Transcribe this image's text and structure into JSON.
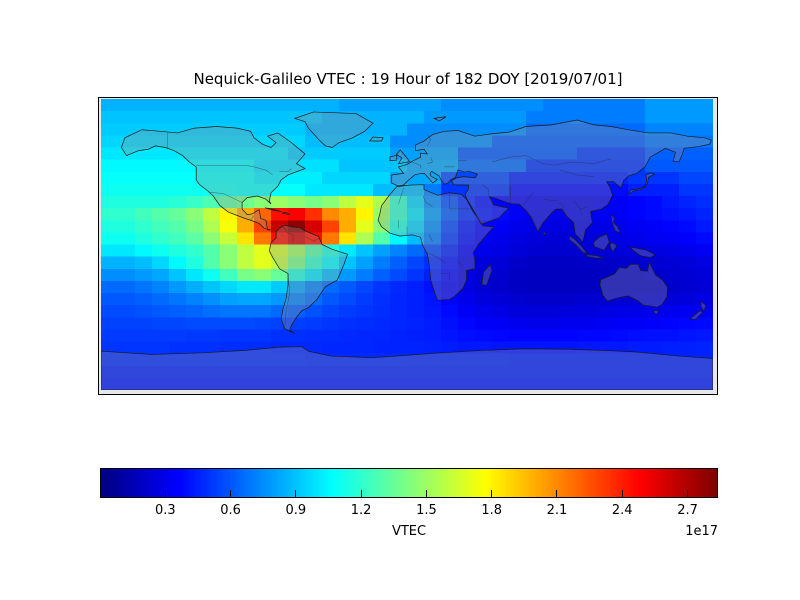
{
  "title": "Nequick-Galileo VTEC : 19 Hour of 182 DOY [2019/07/01]",
  "colorbar": {
    "label": "VTEC",
    "offset_text": "1e17",
    "ticks": [
      0.3,
      0.6,
      0.9,
      1.2,
      1.5,
      1.8,
      2.1,
      2.4,
      2.7
    ],
    "vmin": 0,
    "vmax": 2.84,
    "colormap": "jet"
  },
  "chart_data": {
    "type": "heatmap",
    "title": "Nequick-Galileo VTEC : 19 Hour of 182 DOY [2019/07/01]",
    "colorbar_label": "VTEC",
    "scale_factor": "1e17",
    "colormap": "jet",
    "vmin": 0,
    "vmax": 2.84,
    "lon_range": [
      -180,
      180
    ],
    "lat_range": [
      90,
      -90
    ],
    "grid_cols": 36,
    "grid_rows": 24,
    "values_units": "1e17",
    "values": [
      [
        0.85,
        0.85,
        0.85,
        0.85,
        0.85,
        0.85,
        0.85,
        0.85,
        0.85,
        0.85,
        0.85,
        0.85,
        0.85,
        0.85,
        0.8,
        0.8,
        0.8,
        0.8,
        0.8,
        0.8,
        0.75,
        0.75,
        0.75,
        0.75,
        0.75,
        0.75,
        0.7,
        0.7,
        0.7,
        0.7,
        0.7,
        0.7,
        0.78,
        0.78,
        0.78,
        0.78
      ],
      [
        0.9,
        0.9,
        0.9,
        0.9,
        0.9,
        0.9,
        0.9,
        0.9,
        0.9,
        0.9,
        0.9,
        0.9,
        0.9,
        0.85,
        0.85,
        0.85,
        0.85,
        0.85,
        0.85,
        0.78,
        0.78,
        0.78,
        0.78,
        0.78,
        0.78,
        0.7,
        0.7,
        0.7,
        0.7,
        0.7,
        0.7,
        0.7,
        0.78,
        0.78,
        0.78,
        0.78
      ],
      [
        0.92,
        0.92,
        0.92,
        0.92,
        0.92,
        0.92,
        0.92,
        0.92,
        0.92,
        0.92,
        0.92,
        0.92,
        0.85,
        0.85,
        0.85,
        0.85,
        0.85,
        0.85,
        0.75,
        0.75,
        0.75,
        0.75,
        0.75,
        0.75,
        0.75,
        0.65,
        0.65,
        0.65,
        0.65,
        0.65,
        0.65,
        0.65,
        0.72,
        0.72,
        0.72,
        0.72
      ],
      [
        0.95,
        0.95,
        0.95,
        0.95,
        0.95,
        0.95,
        0.95,
        0.95,
        0.95,
        0.95,
        0.95,
        0.95,
        0.88,
        0.88,
        0.88,
        0.88,
        0.88,
        0.75,
        0.75,
        0.75,
        0.75,
        0.75,
        0.75,
        0.62,
        0.62,
        0.62,
        0.62,
        0.62,
        0.62,
        0.62,
        0.62,
        0.62,
        0.68,
        0.68,
        0.68,
        0.68
      ],
      [
        1.0,
        1.0,
        1.0,
        1.0,
        1.0,
        1.0,
        1.0,
        1.0,
        1.0,
        1.0,
        1.0,
        0.92,
        0.92,
        0.92,
        0.92,
        0.92,
        0.92,
        0.8,
        0.8,
        0.8,
        0.8,
        0.6,
        0.6,
        0.6,
        0.6,
        0.6,
        0.6,
        0.6,
        0.52,
        0.52,
        0.52,
        0.52,
        0.62,
        0.62,
        0.62,
        0.62
      ],
      [
        1.05,
        1.05,
        1.05,
        1.05,
        1.05,
        1.05,
        1.05,
        1.05,
        1.05,
        0.98,
        0.98,
        0.98,
        0.98,
        0.98,
        0.9,
        0.9,
        0.9,
        0.9,
        0.82,
        0.82,
        0.82,
        0.65,
        0.65,
        0.65,
        0.65,
        0.5,
        0.5,
        0.5,
        0.5,
        0.5,
        0.5,
        0.5,
        0.6,
        0.6,
        0.6,
        0.6
      ],
      [
        1.08,
        1.08,
        1.08,
        1.08,
        1.08,
        1.08,
        1.08,
        1.08,
        1.08,
        1.02,
        1.02,
        1.02,
        1.02,
        0.95,
        0.95,
        0.95,
        0.95,
        0.82,
        0.82,
        0.82,
        0.55,
        0.55,
        0.55,
        0.55,
        0.45,
        0.45,
        0.45,
        0.45,
        0.45,
        0.45,
        0.45,
        0.5,
        0.5,
        0.5,
        0.55,
        0.55
      ],
      [
        1.1,
        1.1,
        1.1,
        1.1,
        1.1,
        1.1,
        1.1,
        1.1,
        1.08,
        1.08,
        1.08,
        1.08,
        1.0,
        1.0,
        1.0,
        1.0,
        0.88,
        0.88,
        0.88,
        0.7,
        0.5,
        0.5,
        0.5,
        0.5,
        0.38,
        0.38,
        0.38,
        0.38,
        0.38,
        0.38,
        0.38,
        0.44,
        0.44,
        0.44,
        0.5,
        0.5
      ],
      [
        1.15,
        1.15,
        1.15,
        1.15,
        1.18,
        1.22,
        1.28,
        1.32,
        1.38,
        1.45,
        1.5,
        1.45,
        1.4,
        1.45,
        1.6,
        1.7,
        1.55,
        1.2,
        0.95,
        0.75,
        0.58,
        0.47,
        0.4,
        0.36,
        0.33,
        0.32,
        0.3,
        0.3,
        0.3,
        0.32,
        0.33,
        0.36,
        0.38,
        0.42,
        0.45,
        0.48
      ],
      [
        1.2,
        1.2,
        1.25,
        1.3,
        1.35,
        1.45,
        1.6,
        1.8,
        2.0,
        2.2,
        2.45,
        2.5,
        2.35,
        2.1,
        2.0,
        1.8,
        1.5,
        1.2,
        1.0,
        0.8,
        0.62,
        0.48,
        0.42,
        0.38,
        0.33,
        0.3,
        0.3,
        0.3,
        0.3,
        0.32,
        0.33,
        0.36,
        0.38,
        0.4,
        0.42,
        0.45
      ],
      [
        1.15,
        1.15,
        1.2,
        1.25,
        1.3,
        1.4,
        1.55,
        1.75,
        2.0,
        2.3,
        2.65,
        2.8,
        2.6,
        2.3,
        2.0,
        1.7,
        1.45,
        1.15,
        0.95,
        0.75,
        0.55,
        0.42,
        0.36,
        0.33,
        0.3,
        0.28,
        0.27,
        0.27,
        0.28,
        0.28,
        0.3,
        0.32,
        0.34,
        0.36,
        0.38,
        0.42
      ],
      [
        1.1,
        1.1,
        1.15,
        1.2,
        1.25,
        1.32,
        1.45,
        1.62,
        1.85,
        2.15,
        2.45,
        2.6,
        2.45,
        2.15,
        1.85,
        1.55,
        1.3,
        1.05,
        0.88,
        0.7,
        0.52,
        0.4,
        0.33,
        0.3,
        0.27,
        0.25,
        0.24,
        0.24,
        0.25,
        0.26,
        0.28,
        0.3,
        0.32,
        0.33,
        0.35,
        0.38
      ],
      [
        1.0,
        1.0,
        1.05,
        1.1,
        1.15,
        1.2,
        1.3,
        1.45,
        1.6,
        1.7,
        1.65,
        1.5,
        1.3,
        1.15,
        1.0,
        0.9,
        0.8,
        0.72,
        0.65,
        0.55,
        0.45,
        0.35,
        0.3,
        0.28,
        0.25,
        0.23,
        0.22,
        0.22,
        0.23,
        0.24,
        0.25,
        0.26,
        0.27,
        0.28,
        0.3,
        0.32
      ],
      [
        0.85,
        0.85,
        0.88,
        0.95,
        1.05,
        1.15,
        1.3,
        1.45,
        1.6,
        1.7,
        1.6,
        1.4,
        1.2,
        1.05,
        0.9,
        0.8,
        0.7,
        0.62,
        0.55,
        0.48,
        0.4,
        0.3,
        0.26,
        0.24,
        0.21,
        0.19,
        0.19,
        0.19,
        0.2,
        0.2,
        0.21,
        0.22,
        0.23,
        0.24,
        0.25,
        0.27
      ],
      [
        0.75,
        0.75,
        0.78,
        0.82,
        0.9,
        1.0,
        1.1,
        1.25,
        1.4,
        1.45,
        1.35,
        1.15,
        1.0,
        0.88,
        0.78,
        0.7,
        0.62,
        0.56,
        0.5,
        0.44,
        0.37,
        0.28,
        0.24,
        0.22,
        0.19,
        0.18,
        0.18,
        0.18,
        0.18,
        0.19,
        0.2,
        0.2,
        0.21,
        0.22,
        0.23,
        0.25
      ],
      [
        0.65,
        0.65,
        0.68,
        0.72,
        0.78,
        0.84,
        0.9,
        0.96,
        1.0,
        1.0,
        0.92,
        0.82,
        0.72,
        0.65,
        0.6,
        0.55,
        0.5,
        0.47,
        0.44,
        0.4,
        0.34,
        0.27,
        0.23,
        0.21,
        0.19,
        0.18,
        0.18,
        0.18,
        0.18,
        0.19,
        0.19,
        0.2,
        0.2,
        0.21,
        0.22,
        0.24
      ],
      [
        0.6,
        0.6,
        0.62,
        0.65,
        0.68,
        0.72,
        0.76,
        0.8,
        0.82,
        0.82,
        0.78,
        0.72,
        0.66,
        0.6,
        0.56,
        0.52,
        0.49,
        0.46,
        0.44,
        0.41,
        0.36,
        0.3,
        0.26,
        0.24,
        0.22,
        0.21,
        0.21,
        0.21,
        0.22,
        0.22,
        0.23,
        0.24,
        0.24,
        0.25,
        0.26,
        0.28
      ],
      [
        0.56,
        0.56,
        0.58,
        0.6,
        0.62,
        0.64,
        0.66,
        0.68,
        0.68,
        0.68,
        0.65,
        0.62,
        0.58,
        0.55,
        0.52,
        0.5,
        0.48,
        0.46,
        0.44,
        0.42,
        0.38,
        0.33,
        0.3,
        0.28,
        0.26,
        0.25,
        0.25,
        0.26,
        0.26,
        0.27,
        0.28,
        0.29,
        0.3,
        0.31,
        0.32,
        0.33
      ],
      [
        0.54,
        0.54,
        0.54,
        0.55,
        0.55,
        0.56,
        0.56,
        0.56,
        0.56,
        0.55,
        0.54,
        0.53,
        0.52,
        0.5,
        0.49,
        0.48,
        0.47,
        0.46,
        0.45,
        0.43,
        0.4,
        0.37,
        0.34,
        0.33,
        0.31,
        0.3,
        0.3,
        0.31,
        0.31,
        0.32,
        0.33,
        0.34,
        0.35,
        0.36,
        0.37,
        0.38
      ],
      [
        0.52,
        0.52,
        0.52,
        0.52,
        0.52,
        0.51,
        0.51,
        0.5,
        0.5,
        0.5,
        0.49,
        0.49,
        0.48,
        0.48,
        0.47,
        0.46,
        0.46,
        0.45,
        0.44,
        0.43,
        0.41,
        0.39,
        0.38,
        0.37,
        0.36,
        0.36,
        0.36,
        0.36,
        0.37,
        0.37,
        0.38,
        0.39,
        0.4,
        0.4,
        0.41,
        0.42
      ],
      [
        0.5,
        0.5,
        0.5,
        0.5,
        0.49,
        0.49,
        0.49,
        0.48,
        0.48,
        0.48,
        0.47,
        0.47,
        0.47,
        0.46,
        0.46,
        0.46,
        0.45,
        0.45,
        0.45,
        0.44,
        0.43,
        0.42,
        0.42,
        0.41,
        0.41,
        0.41,
        0.41,
        0.41,
        0.42,
        0.42,
        0.42,
        0.43,
        0.43,
        0.44,
        0.44,
        0.45
      ],
      [
        0.48,
        0.48,
        0.48,
        0.48,
        0.48,
        0.48,
        0.48,
        0.48,
        0.48,
        0.48,
        0.48,
        0.48,
        0.47,
        0.47,
        0.47,
        0.47,
        0.47,
        0.47,
        0.46,
        0.46,
        0.46,
        0.46,
        0.46,
        0.46,
        0.45,
        0.45,
        0.45,
        0.45,
        0.45,
        0.45,
        0.45,
        0.45,
        0.45,
        0.45,
        0.45,
        0.45
      ],
      [
        0.45,
        0.45,
        0.45,
        0.45,
        0.45,
        0.45,
        0.45,
        0.45,
        0.45,
        0.45,
        0.45,
        0.45,
        0.45,
        0.45,
        0.45,
        0.45,
        0.45,
        0.45,
        0.45,
        0.45,
        0.45,
        0.45,
        0.45,
        0.45,
        0.45,
        0.45,
        0.45,
        0.45,
        0.45,
        0.45,
        0.45,
        0.45,
        0.45,
        0.45,
        0.45,
        0.45
      ],
      [
        0.43,
        0.43,
        0.43,
        0.43,
        0.43,
        0.43,
        0.43,
        0.43,
        0.43,
        0.43,
        0.43,
        0.43,
        0.43,
        0.43,
        0.43,
        0.43,
        0.43,
        0.43,
        0.43,
        0.43,
        0.43,
        0.43,
        0.43,
        0.43,
        0.43,
        0.43,
        0.43,
        0.43,
        0.43,
        0.43,
        0.43,
        0.43,
        0.43,
        0.43,
        0.43,
        0.43
      ]
    ]
  }
}
